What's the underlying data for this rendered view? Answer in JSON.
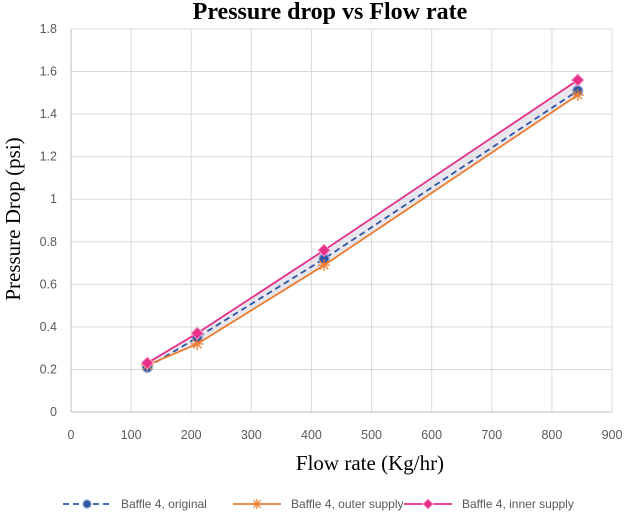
{
  "chart_data": {
    "type": "line",
    "title": "Pressure drop vs Flow rate",
    "xlabel": "Flow rate (Kg/hr)",
    "ylabel": "Pressure Drop (psi)",
    "xlim": [
      0,
      900
    ],
    "ylim": [
      0,
      1.8
    ],
    "xticks": [
      "0",
      "100",
      "200",
      "300",
      "400",
      "500",
      "600",
      "700",
      "800",
      "900"
    ],
    "yticks": [
      "0",
      "0.2",
      "0.4",
      "0.6",
      "0.8",
      "1",
      "1.2",
      "1.4",
      "1.6",
      "1.8"
    ],
    "grid": "vertical and horizontal",
    "legend_position": "bottom",
    "series": [
      {
        "name": "Baffle 4, original",
        "color": "#2f55a4",
        "line_style": "dashed",
        "marker": "circle",
        "x": [
          127,
          210,
          421,
          843
        ],
        "y": [
          0.21,
          0.35,
          0.72,
          1.51
        ]
      },
      {
        "name": "Baffle 4, outer supply",
        "color": "#ed7d31",
        "line_style": "solid",
        "marker": "asterisk",
        "x": [
          127,
          210,
          421,
          843
        ],
        "y": [
          0.22,
          0.32,
          0.69,
          1.49
        ]
      },
      {
        "name": "Baffle 4, inner supply",
        "color": "#e6308a",
        "line_style": "solid",
        "marker": "diamond",
        "x": [
          127,
          210,
          421,
          843
        ],
        "y": [
          0.23,
          0.37,
          0.76,
          1.56
        ]
      }
    ]
  }
}
